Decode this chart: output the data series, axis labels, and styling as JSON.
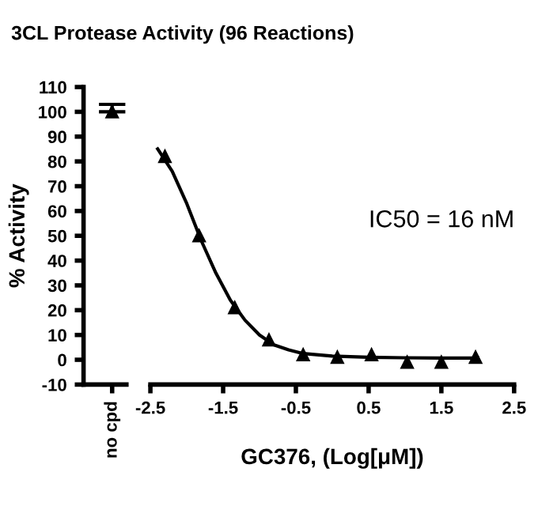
{
  "chart_data": [
    {
      "type": "scatter",
      "title": "3CL Protease Activity (96 Reactions)",
      "ylabel": "% Activity",
      "categories": [
        "no cpd"
      ],
      "ylim": [
        -10,
        110
      ],
      "yticks": [
        -10,
        0,
        10,
        20,
        30,
        40,
        50,
        60,
        70,
        80,
        90,
        100,
        110
      ],
      "marker": "triangle",
      "legend": false,
      "grid": false,
      "series": [
        {
          "color": "#000000",
          "values": [
            100
          ],
          "errors": [
            [
              100,
              103
            ]
          ]
        }
      ]
    },
    {
      "type": "scatter",
      "xlabel": "GC376, (Log[μM])",
      "xlim": [
        -2.5,
        2.5
      ],
      "xticks": [
        -2.5,
        -1.5,
        -0.5,
        0.5,
        1.5,
        2.5
      ],
      "ylim": [
        -10,
        110
      ],
      "tick_labels": "x",
      "marker": "triangle",
      "legend": false,
      "grid": false,
      "annotations": [
        "IC50 = 16 nM"
      ],
      "series": [
        {
          "color": "#000000",
          "x": [
            -2.3,
            -1.83,
            -1.34,
            -0.87,
            -0.4,
            0.07,
            0.54,
            1.03,
            1.5,
            1.97
          ],
          "values": [
            82,
            50,
            21,
            8,
            2,
            1,
            2,
            -1,
            -1,
            1
          ]
        },
        {
          "type": "line",
          "color": "#000000",
          "marker": "none",
          "x": [
            -2.4,
            -2.2,
            -2.0,
            -1.8,
            -1.6,
            -1.4,
            -1.2,
            -1.0,
            -0.8,
            -0.6,
            -0.4,
            0.0,
            0.5,
            1.0,
            1.5,
            2.0
          ],
          "values": [
            85,
            76,
            63,
            48,
            35,
            24,
            16,
            10,
            6,
            4,
            2.5,
            1.5,
            1,
            0.8,
            0.7,
            0.7
          ]
        }
      ]
    }
  ]
}
